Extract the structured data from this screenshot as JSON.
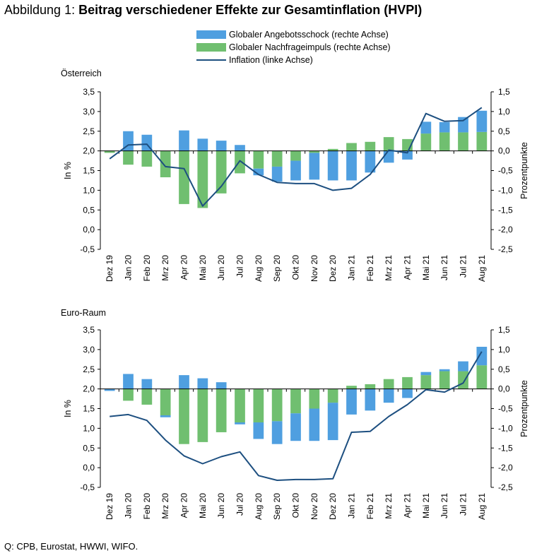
{
  "figure": {
    "title_prefix": "Abbildung 1: ",
    "title_main": "Beitrag verschiedener Effekte zur Gesamtinflation (HVPI)",
    "source": "Q: CPB, Eurostat, HWWI, WIFO."
  },
  "legend": [
    {
      "label": "Globaler Angebotsschock (rechte Achse)",
      "color": "#4f9fe0",
      "kind": "bar"
    },
    {
      "label": "Globaler Nachfrageimpuls (rechte Achse)",
      "color": "#70bf70",
      "kind": "bar"
    },
    {
      "label": "Inflation (linke Achse)",
      "color": "#1d4f80",
      "kind": "line"
    }
  ],
  "colors": {
    "supply": "#4f9fe0",
    "demand": "#70bf70",
    "inflation": "#1d4f80"
  },
  "chart_data": [
    {
      "type": "bar",
      "title": "Österreich",
      "ylabel": "In %",
      "y2label": "Prozentpunkte",
      "ylim": [
        -0.5,
        3.5
      ],
      "y2lim": [
        -2.5,
        1.5
      ],
      "yticks": [
        "3,5",
        "3,0",
        "2,5",
        "2,0",
        "1,5",
        "1,0",
        "0,5",
        "0,0",
        "-0,5"
      ],
      "y2ticks": [
        "1,5",
        "1,0",
        "0,5",
        "0,0",
        "-0,5",
        "-1,0",
        "-1,5",
        "-2,0",
        "-2,5"
      ],
      "categories": [
        "Dez 19",
        "Jan 20",
        "Feb 20",
        "Mrz 20",
        "Apr 20",
        "Mai 20",
        "Jun 20",
        "Jul 20",
        "Aug 20",
        "Sep 20",
        "Okt 20",
        "Nov 20",
        "Dez 20",
        "Jan 21",
        "Feb 21",
        "Mrz 21",
        "Apr 21",
        "Mai 21",
        "Jun 21",
        "Jul 21",
        "Aug 21"
      ],
      "series": [
        {
          "name": "Globaler Nachfrageimpuls (rechte Achse)",
          "axis": "right",
          "values": [
            -0.05,
            -0.35,
            -0.4,
            -0.67,
            -1.35,
            -1.45,
            -1.08,
            -0.57,
            -0.45,
            -0.4,
            -0.25,
            -0.05,
            0.05,
            0.2,
            0.23,
            0.35,
            0.3,
            0.44,
            0.47,
            0.47,
            0.48
          ]
        },
        {
          "name": "Globaler Angebotsschock (rechte Achse)",
          "axis": "right",
          "values": [
            0.0,
            0.5,
            0.41,
            0.0,
            0.52,
            0.31,
            0.26,
            0.15,
            -0.17,
            -0.38,
            -0.5,
            -0.68,
            -0.75,
            -0.75,
            -0.55,
            -0.3,
            -0.22,
            0.3,
            0.26,
            0.39,
            0.54
          ]
        },
        {
          "name": "Inflation (linke Achse)",
          "axis": "left",
          "values": [
            1.8,
            2.15,
            2.17,
            1.6,
            1.55,
            0.6,
            1.1,
            1.75,
            1.4,
            1.2,
            1.17,
            1.17,
            1.0,
            1.05,
            1.4,
            2.02,
            1.95,
            2.95,
            2.75,
            2.77,
            3.1
          ]
        }
      ]
    },
    {
      "type": "bar",
      "title": "Euro-Raum",
      "ylabel": "In %",
      "y2label": "Prozentpunkte",
      "ylim": [
        -0.5,
        3.5
      ],
      "y2lim": [
        -2.5,
        1.5
      ],
      "yticks": [
        "3,5",
        "3,0",
        "2,5",
        "2,0",
        "1,5",
        "1,0",
        "0,5",
        "0,0",
        "-0,5"
      ],
      "y2ticks": [
        "1,5",
        "1,0",
        "0,5",
        "0,0",
        "-0,5",
        "-1,0",
        "-1,5",
        "-2,0",
        "-2,5"
      ],
      "categories": [
        "Dez 19",
        "Jan 20",
        "Feb 20",
        "Mrz 20",
        "Apr 20",
        "Mai 20",
        "Jun 20",
        "Jul 20",
        "Aug 20",
        "Sep 20",
        "Okt 20",
        "Nov 20",
        "Dez 20",
        "Jan 21",
        "Feb 21",
        "Mrz 21",
        "Apr 21",
        "Mai 21",
        "Jun 21",
        "Jul 21",
        "Aug 21"
      ],
      "series": [
        {
          "name": "Globaler Nachfrageimpuls (rechte Achse)",
          "axis": "right",
          "values": [
            0.0,
            -0.3,
            -0.4,
            -0.67,
            -1.4,
            -1.35,
            -1.1,
            -0.85,
            -0.85,
            -0.82,
            -0.62,
            -0.5,
            -0.35,
            0.08,
            0.12,
            0.25,
            0.3,
            0.35,
            0.45,
            0.45,
            0.6
          ]
        },
        {
          "name": "Globaler Angebotsschock (rechte Achse)",
          "axis": "right",
          "values": [
            -0.05,
            0.38,
            0.25,
            -0.05,
            0.35,
            0.27,
            0.17,
            -0.05,
            -0.42,
            -0.58,
            -0.7,
            -0.82,
            -0.95,
            -0.65,
            -0.55,
            -0.35,
            -0.23,
            0.08,
            0.05,
            0.25,
            0.47
          ]
        },
        {
          "name": "Inflation (linke Achse)",
          "axis": "left",
          "values": [
            1.3,
            1.35,
            1.2,
            0.7,
            0.3,
            0.1,
            0.28,
            0.4,
            -0.2,
            -0.32,
            -0.3,
            -0.3,
            -0.28,
            0.9,
            0.92,
            1.3,
            1.6,
            1.98,
            1.92,
            2.15,
            2.95
          ]
        }
      ]
    }
  ]
}
